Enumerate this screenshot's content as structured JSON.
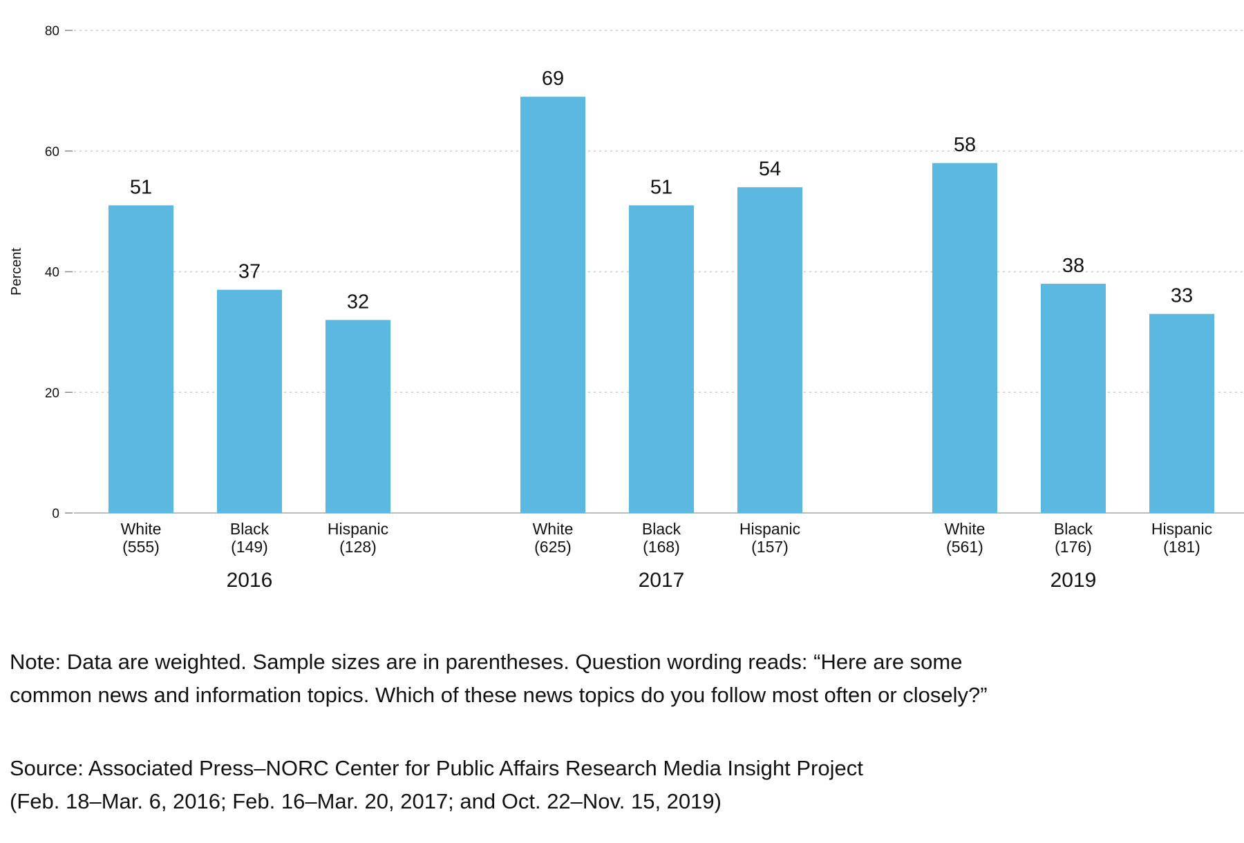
{
  "chart_data": {
    "type": "bar",
    "ylabel": "Percent",
    "ylim": [
      0,
      80
    ],
    "yticks": [
      0,
      20,
      40,
      60,
      80
    ],
    "grid": true,
    "bar_color": "#5bb8e0",
    "groups": [
      {
        "label": "2016",
        "bars": [
          {
            "category": "White",
            "n": "(555)",
            "value": 51
          },
          {
            "category": "Black",
            "n": "(149)",
            "value": 37
          },
          {
            "category": "Hispanic",
            "n": "(128)",
            "value": 32
          }
        ]
      },
      {
        "label": "2017",
        "bars": [
          {
            "category": "White",
            "n": "(625)",
            "value": 69
          },
          {
            "category": "Black",
            "n": "(168)",
            "value": 51
          },
          {
            "category": "Hispanic",
            "n": "(157)",
            "value": 54
          }
        ]
      },
      {
        "label": "2019",
        "bars": [
          {
            "category": "White",
            "n": "(561)",
            "value": 58
          },
          {
            "category": "Black",
            "n": "(176)",
            "value": 38
          },
          {
            "category": "Hispanic",
            "n": "(181)",
            "value": 33
          }
        ]
      }
    ]
  },
  "footnotes": {
    "note_line1": "Note: Data are weighted. Sample sizes are in parentheses. Question wording reads: “Here are some",
    "note_line2": "common news and information topics. Which of these news topics do you follow most often or closely?”",
    "source_line1": "Source: Associated Press–NORC Center for Public Affairs Research Media Insight Project",
    "source_line2": "(Feb. 18–Mar. 6, 2016; Feb. 16–Mar. 20, 2017; and Oct. 22–Nov. 15, 2019)"
  }
}
